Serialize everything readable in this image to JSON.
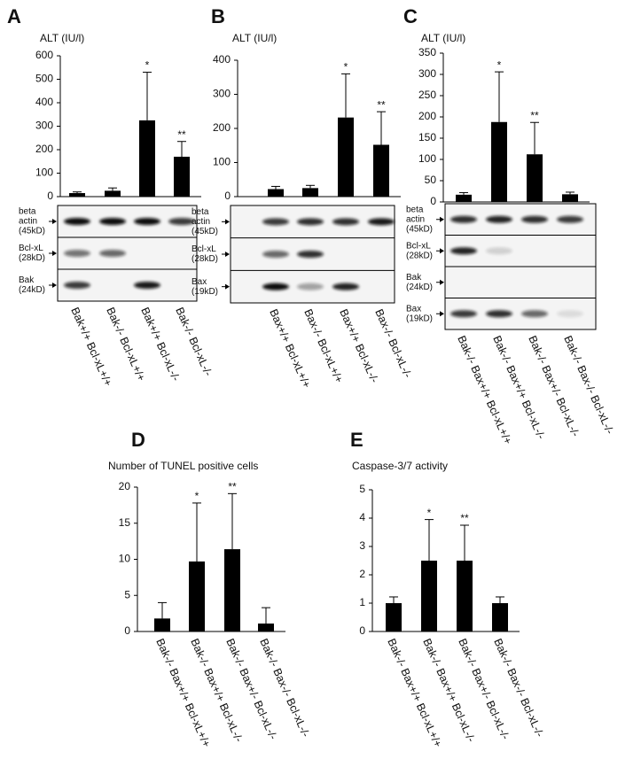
{
  "chart_data": [
    {
      "type": "bar",
      "panel": "A",
      "title": "ALT (IU/l)",
      "categories": [
        "Bak+/+ Bcl-xL+/+",
        "Bak-/- Bcl-xL+/+",
        "Bak+/+ Bcl-xL-/-",
        "Bak-/- Bcl-xL-/-"
      ],
      "values": [
        15,
        25,
        325,
        170
      ],
      "errors": [
        5,
        12,
        205,
        65
      ],
      "significance": [
        null,
        null,
        "*",
        "**"
      ],
      "color": "#000000",
      "ylim": [
        0,
        600
      ],
      "yticks": [
        0,
        100,
        200,
        300,
        400,
        500,
        600
      ],
      "blot_labels": [
        [
          "beta",
          "actin",
          "(45kD)"
        ],
        [
          "Bcl-xL",
          "(28kD)"
        ],
        [
          "Bak",
          "(24kD)"
        ]
      ]
    },
    {
      "type": "bar",
      "panel": "B",
      "title": "ALT (IU/l)",
      "categories": [
        "Bax+/+ Bcl-xL+/+",
        "Bax-/- Bcl-xL+/+",
        "Bax+/+ Bcl-xL-/-",
        "Bax-/- Bcl-xL-/-"
      ],
      "values": [
        22,
        25,
        232,
        152
      ],
      "errors": [
        8,
        8,
        128,
        97
      ],
      "significance": [
        null,
        null,
        "*",
        "**"
      ],
      "color": "#000000",
      "ylim": [
        0,
        400
      ],
      "yticks": [
        0,
        100,
        200,
        300,
        400
      ],
      "blot_labels": [
        [
          "beta",
          "actin",
          "(45kD)"
        ],
        [
          "Bcl-xL",
          "(28kD)"
        ],
        [
          "Bax",
          "(19kD)"
        ]
      ]
    },
    {
      "type": "bar",
      "panel": "C",
      "title": "ALT (IU/l)",
      "categories": [
        "Bak-/- Bax+/+ Bcl-xL+/+",
        "Bak-/- Bax+/+ Bcl-xL-/-",
        "Bak-/- Bax+/- Bcl-xL-/-",
        "Bak-/- Bax-/- Bcl-xL-/-"
      ],
      "values": [
        17,
        188,
        112,
        18
      ],
      "errors": [
        5,
        118,
        75,
        5
      ],
      "significance": [
        null,
        "*",
        "**",
        null
      ],
      "color": "#000000",
      "ylim": [
        0,
        350
      ],
      "yticks": [
        0,
        50,
        100,
        150,
        200,
        250,
        300,
        350
      ],
      "blot_labels": [
        [
          "beta",
          "actin",
          "(45kD)"
        ],
        [
          "Bcl-xL",
          "(28kD)"
        ],
        [
          "Bak",
          "(24kD)"
        ],
        [
          "Bax",
          "(19kD)"
        ]
      ]
    },
    {
      "type": "bar",
      "panel": "D",
      "title": "Number of TUNEL positive cells",
      "categories": [
        "Bak-/- Bax+/+ Bcl-xL+/+",
        "Bak-/- Bax+/+ Bcl-xL-/-",
        "Bak-/- Bax+/- Bcl-xL-/-",
        "Bak-/- Bax-/- Bcl-xL-/-"
      ],
      "values": [
        1.8,
        9.7,
        11.4,
        1.1
      ],
      "errors": [
        2.2,
        8.1,
        7.7,
        2.2
      ],
      "significance": [
        null,
        "*",
        "**",
        null
      ],
      "color": "#000000",
      "ylim": [
        0,
        20
      ],
      "yticks": [
        0,
        5,
        10,
        15,
        20
      ]
    },
    {
      "type": "bar",
      "panel": "E",
      "title": "Caspase-3/7 activity",
      "categories": [
        "Bak-/- Bax+/+ Bcl-xL+/+",
        "Bak-/- Bax+/+ Bcl-xL-/-",
        "Bak-/- Bax+/- Bcl-xL-/-",
        "Bak-/- Bax-/- Bcl-xL-/-"
      ],
      "values": [
        1.0,
        2.5,
        2.5,
        1.0
      ],
      "errors": [
        0.22,
        1.45,
        1.25,
        0.22
      ],
      "significance": [
        null,
        "*",
        "**",
        null
      ],
      "color": "#000000",
      "ylim": [
        0,
        5
      ],
      "yticks": [
        0,
        1,
        2,
        3,
        4,
        5
      ]
    }
  ]
}
